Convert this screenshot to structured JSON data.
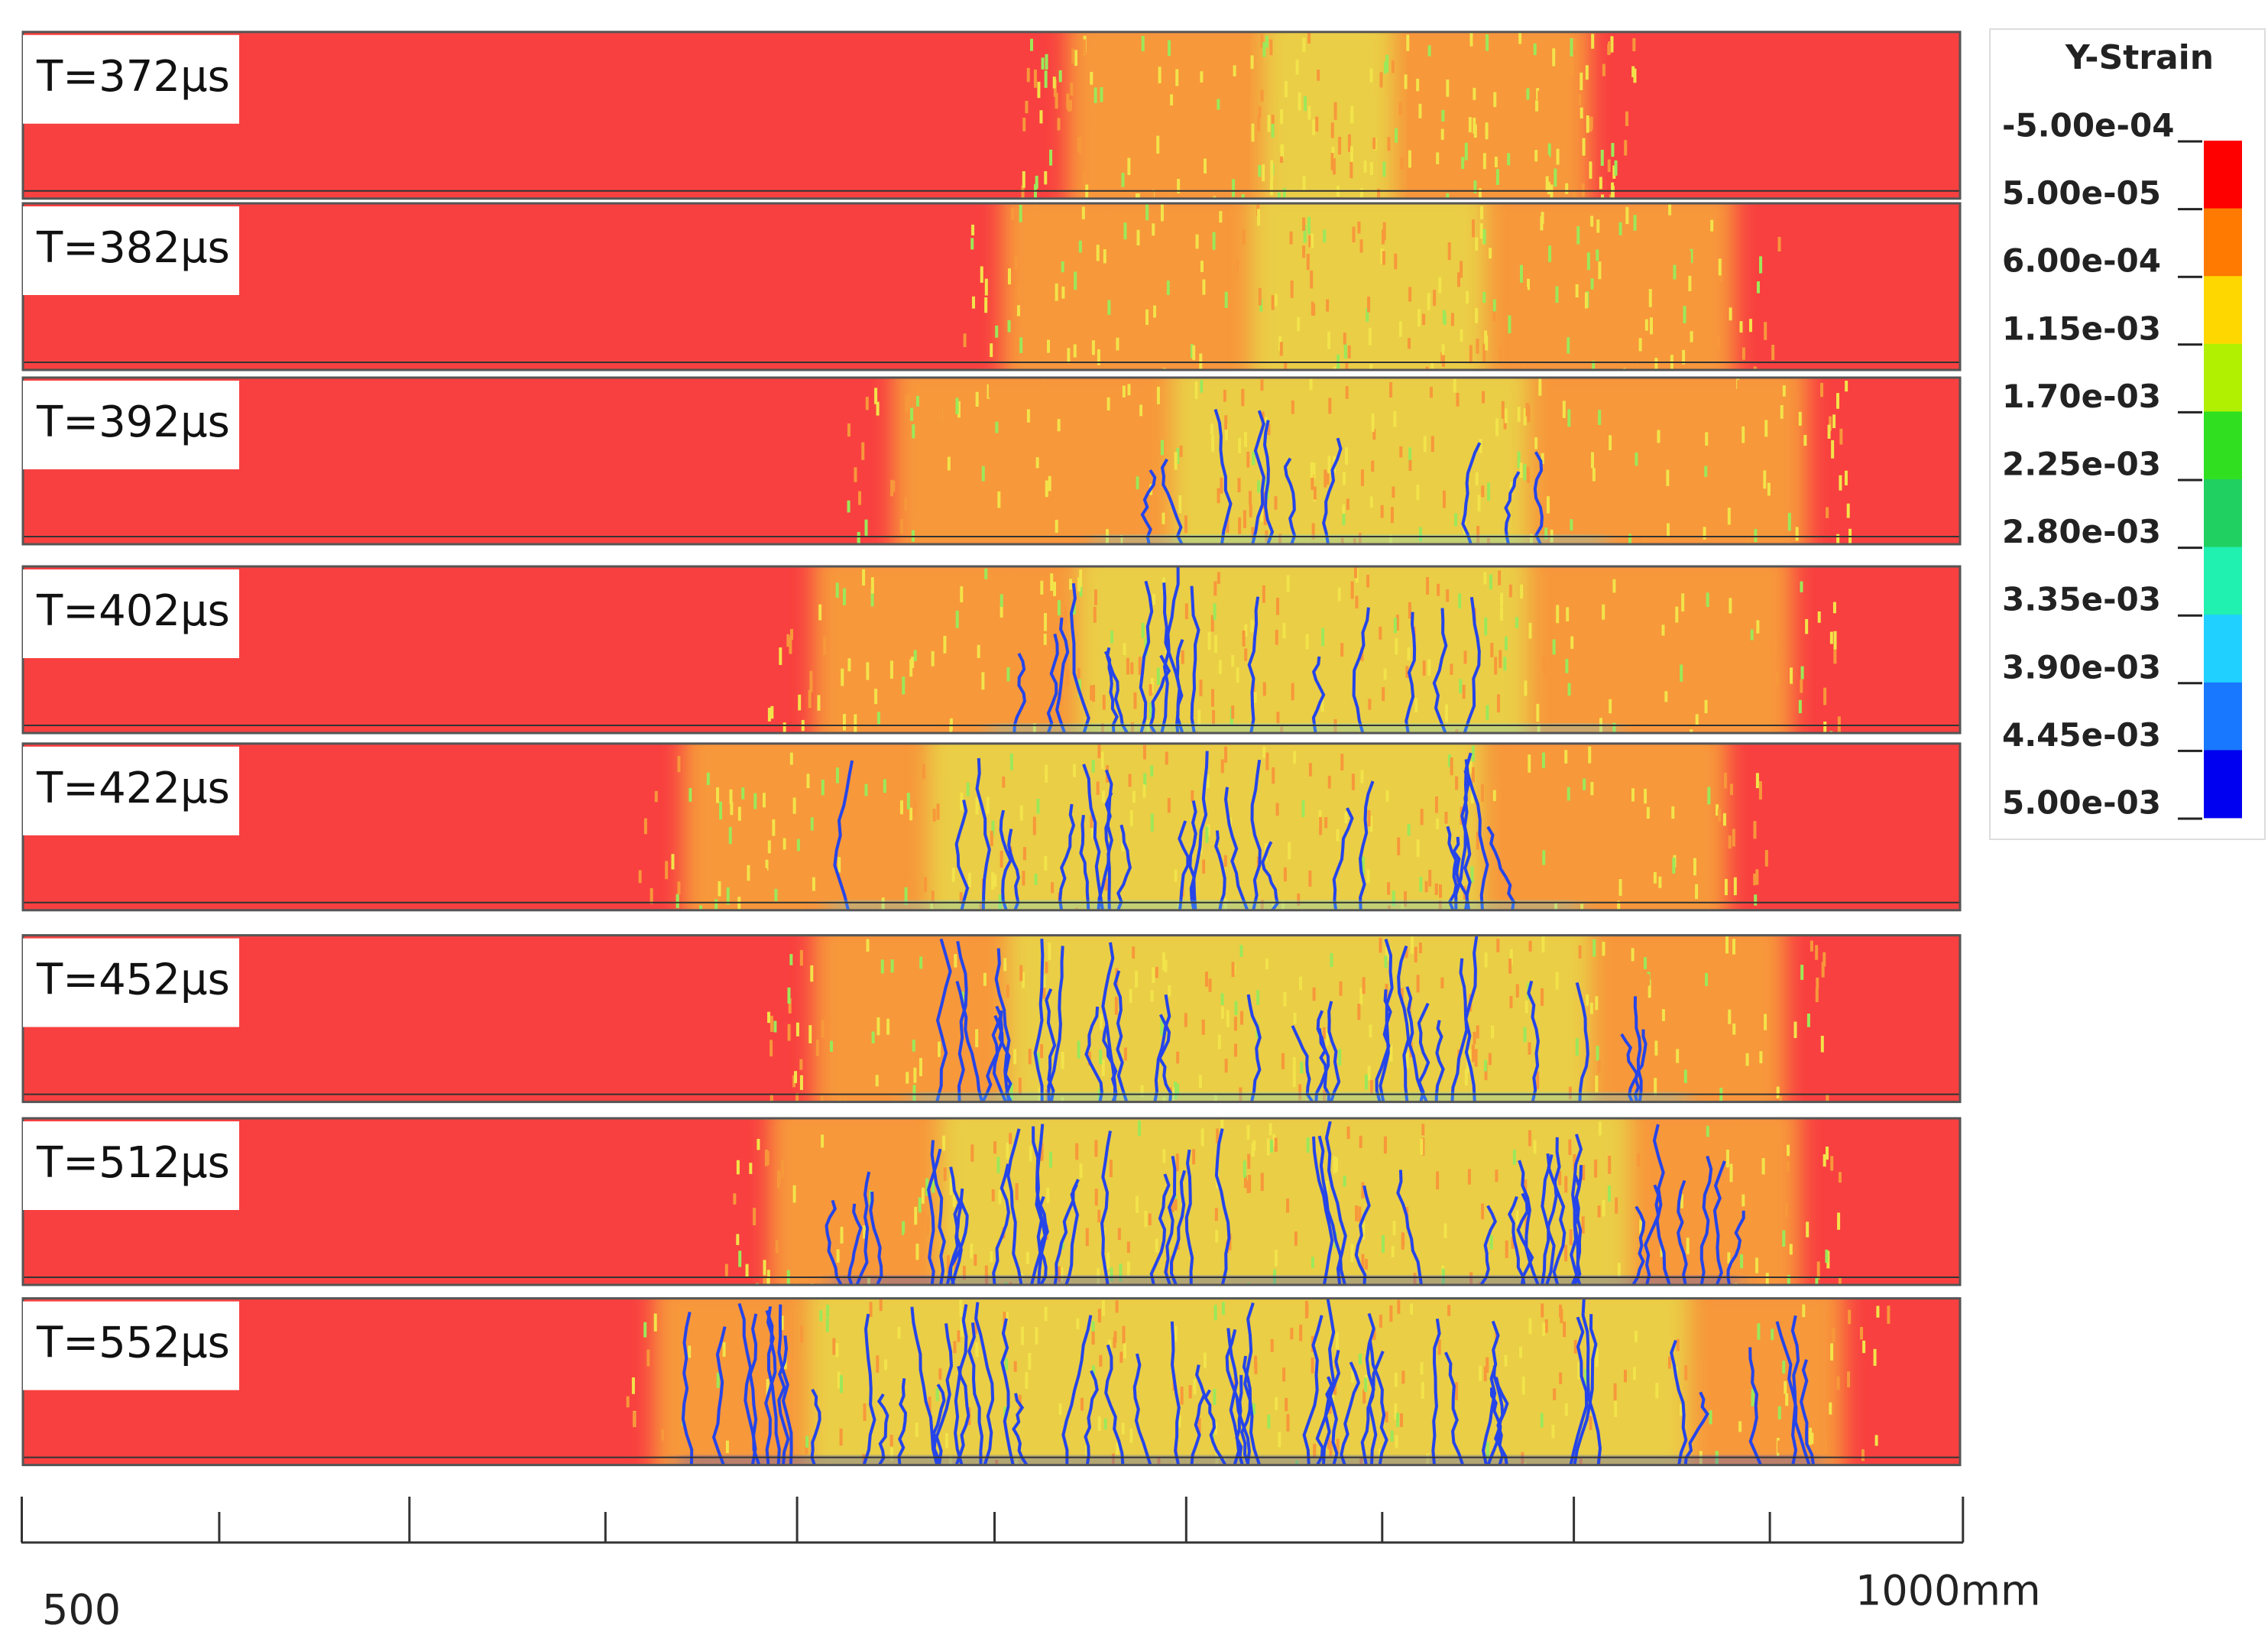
{
  "panels": [
    {
      "label": "T=372μs"
    },
    {
      "label": "T=382μs"
    },
    {
      "label": "T=392μs"
    },
    {
      "label": "T=402μs"
    },
    {
      "label": "T=422μs"
    },
    {
      "label": "T=452μs"
    },
    {
      "label": "T=512μs"
    },
    {
      "label": "T=552μs"
    }
  ],
  "legend": {
    "title": "Y-Strain",
    "labels": [
      "-5.00e-04",
      "5.00e-05",
      "6.00e-04",
      "1.15e-03",
      "1.70e-03",
      "2.25e-03",
      "2.80e-03",
      "3.35e-03",
      "3.90e-03",
      "4.45e-03",
      "5.00e-03"
    ]
  },
  "scale": {
    "start_label": "500",
    "end_label": "1000mm"
  }
}
